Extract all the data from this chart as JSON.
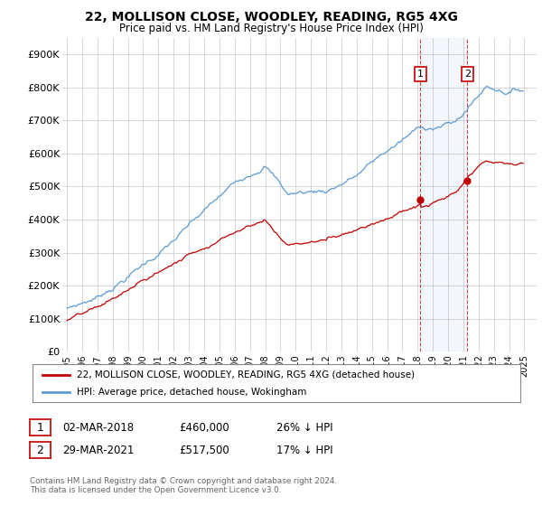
{
  "title": "22, MOLLISON CLOSE, WOODLEY, READING, RG5 4XG",
  "subtitle": "Price paid vs. HM Land Registry's House Price Index (HPI)",
  "ylim": [
    0,
    950000
  ],
  "yticks": [
    0,
    100000,
    200000,
    300000,
    400000,
    500000,
    600000,
    700000,
    800000,
    900000
  ],
  "ytick_labels": [
    "£0",
    "£100K",
    "£200K",
    "£300K",
    "£400K",
    "£500K",
    "£600K",
    "£700K",
    "£800K",
    "£900K"
  ],
  "sale1_year": 2018.17,
  "sale1_price": 460000,
  "sale2_year": 2021.25,
  "sale2_price": 517500,
  "hpi_color": "#5b9bd5",
  "price_color": "#c00000",
  "background_color": "#ffffff",
  "grid_color": "#c8c8c8",
  "footer": "Contains HM Land Registry data © Crown copyright and database right 2024.\nThis data is licensed under the Open Government Licence v3.0.",
  "legend_label1": "22, MOLLISON CLOSE, WOODLEY, READING, RG5 4XG (detached house)",
  "legend_label2": "HPI: Average price, detached house, Wokingham",
  "xlim_left": 1994.7,
  "xlim_right": 2025.8
}
